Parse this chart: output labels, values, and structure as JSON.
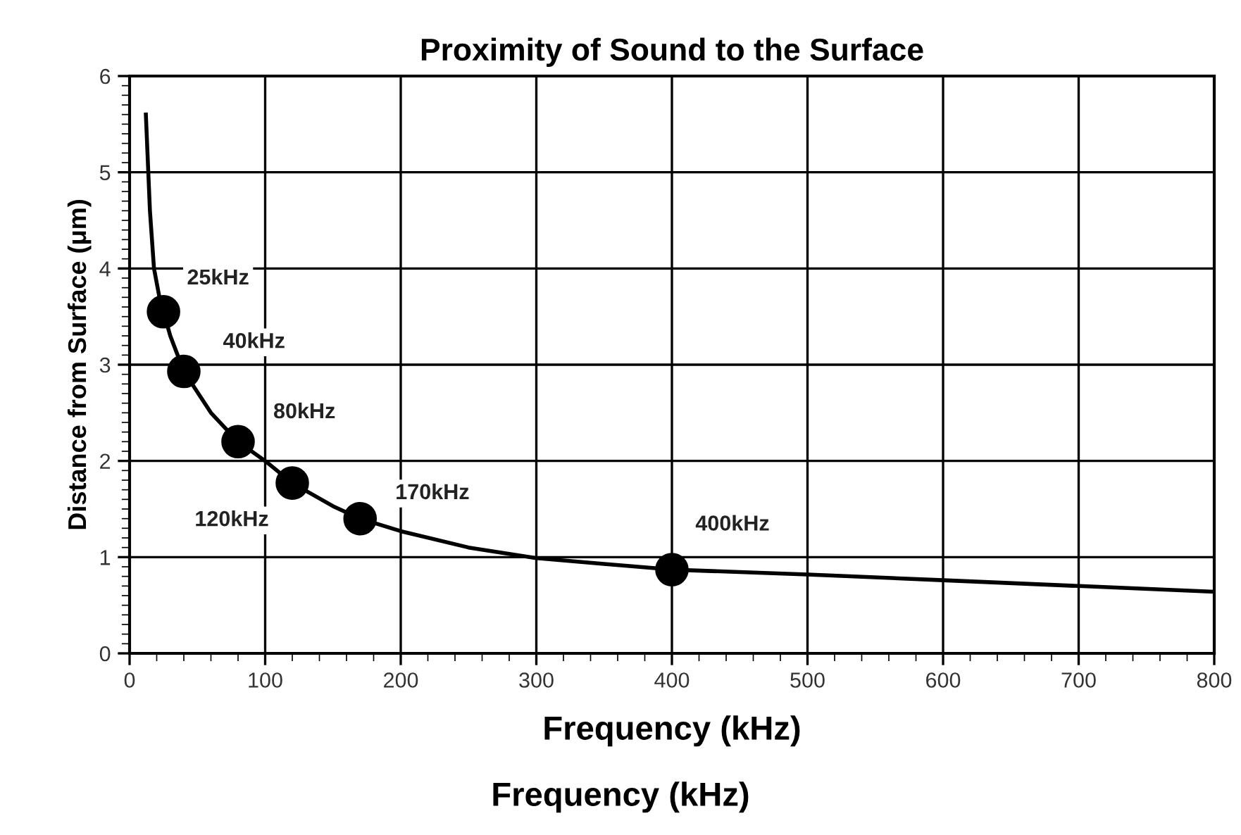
{
  "chart_data": {
    "type": "line",
    "title": "Proximity of Sound to the Surface",
    "xlabel": "Frequency (kHz)",
    "ylabel": "Distance from Surface (μm)",
    "series": [
      {
        "color": "#000000",
        "marker": "none",
        "x": [
          12,
          15,
          18,
          22,
          25,
          30,
          40,
          60,
          80,
          100,
          120,
          150,
          170,
          200,
          250,
          300,
          350,
          400,
          500,
          600,
          700,
          800
        ],
        "values": [
          5.6,
          4.6,
          4.0,
          3.7,
          3.55,
          3.3,
          2.93,
          2.5,
          2.2,
          2.0,
          1.77,
          1.53,
          1.4,
          1.27,
          1.1,
          0.99,
          0.93,
          0.87,
          0.82,
          0.76,
          0.7,
          0.64
        ]
      },
      {
        "type": "scatter",
        "color": "#000000",
        "marker": "circle",
        "x": [
          25,
          40,
          80,
          120,
          170,
          400
        ],
        "values": [
          3.55,
          2.93,
          2.2,
          1.77,
          1.4,
          0.87
        ]
      }
    ],
    "annotations": [
      {
        "text": "25kHz",
        "x": 25,
        "y": 3.55
      },
      {
        "text": "40kHz",
        "x": 40,
        "y": 2.93
      },
      {
        "text": "80kHz",
        "x": 80,
        "y": 2.2
      },
      {
        "text": "120kHz",
        "x": 120,
        "y": 1.77
      },
      {
        "text": "170kHz",
        "x": 170,
        "y": 1.4
      },
      {
        "text": "400kHz",
        "x": 400,
        "y": 0.87
      },
      "Frequency (kHz)"
    ],
    "xlim": [
      0,
      800
    ],
    "xticks": [
      0,
      100,
      200,
      300,
      400,
      500,
      600,
      700,
      800
    ],
    "ylim": [
      0,
      6
    ],
    "yticks": [
      0,
      1,
      2,
      3,
      4,
      5,
      6
    ],
    "grid": true,
    "line_style": "solid"
  }
}
